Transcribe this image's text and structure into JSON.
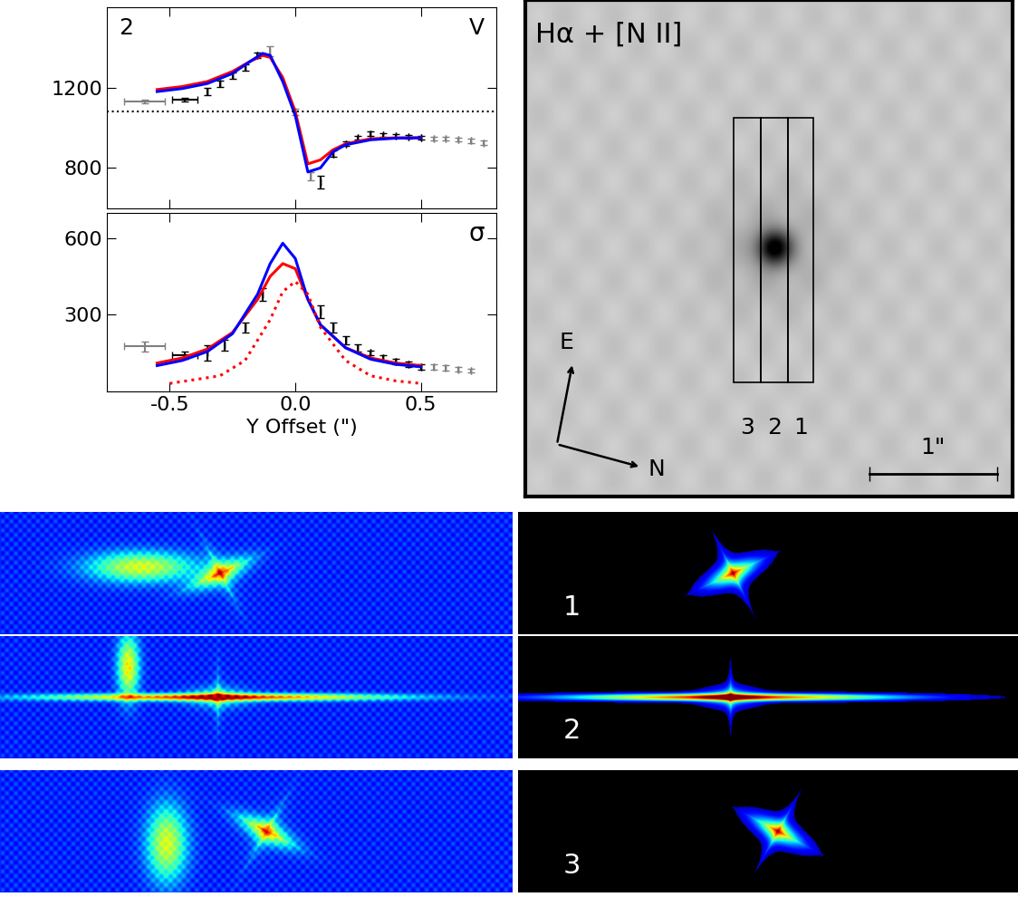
{
  "chart_data": [
    {
      "type": "line",
      "annotations": [
        "2",
        "V"
      ],
      "xlim": [
        -0.75,
        0.8
      ],
      "xticks": [
        -0.5,
        0.0,
        0.5
      ],
      "ylim": [
        600,
        1600
      ],
      "yticks": [
        800,
        1200
      ],
      "tick_labels": "y",
      "hline": 1080,
      "series": [
        {
          "type": "errorbar",
          "color": "black",
          "x": [
            -0.44,
            -0.35,
            -0.3,
            -0.25,
            -0.2,
            -0.15,
            0.1,
            0.15,
            0.2,
            0.25,
            0.3,
            0.35,
            0.4,
            0.45,
            0.5
          ],
          "values": [
            1140,
            1180,
            1220,
            1260,
            1300,
            1360,
            730,
            870,
            920,
            950,
            970,
            965,
            960,
            955,
            950
          ],
          "errors": [
            10,
            20,
            15,
            15,
            15,
            15,
            30,
            15,
            12,
            10,
            10,
            10,
            10,
            10,
            10
          ],
          "x_errors": [
            0.05,
            0,
            0,
            0,
            0,
            0,
            0,
            0,
            0,
            0,
            0,
            0,
            0,
            0,
            0
          ]
        },
        {
          "type": "errorbar",
          "color": "gray",
          "x": [
            -0.6,
            -0.1,
            0.0,
            0.06,
            0.55,
            0.6,
            0.65,
            0.7,
            0.75
          ],
          "values": [
            1130,
            1380,
            1080,
            760,
            945,
            945,
            940,
            935,
            925
          ],
          "errors": [
            10,
            25,
            15,
            20,
            10,
            10,
            10,
            10,
            10
          ],
          "x_errors": [
            0.08,
            0,
            0,
            0,
            0,
            0,
            0,
            0,
            0
          ]
        },
        {
          "type": "line",
          "color": "red",
          "line_style": "solid",
          "x": [
            -0.55,
            -0.45,
            -0.35,
            -0.25,
            -0.18,
            -0.13,
            -0.1,
            -0.05,
            0.0,
            0.05,
            0.1,
            0.15,
            0.2,
            0.3,
            0.4,
            0.5
          ],
          "values": [
            1190,
            1205,
            1230,
            1280,
            1330,
            1360,
            1350,
            1250,
            1080,
            820,
            840,
            890,
            920,
            945,
            950,
            950
          ]
        },
        {
          "type": "line",
          "color": "blue",
          "line_style": "solid",
          "x": [
            -0.55,
            -0.45,
            -0.35,
            -0.25,
            -0.18,
            -0.13,
            -0.1,
            -0.05,
            0.0,
            0.05,
            0.1,
            0.15,
            0.2,
            0.3,
            0.4,
            0.5
          ],
          "values": [
            1180,
            1195,
            1220,
            1270,
            1330,
            1370,
            1360,
            1230,
            1060,
            780,
            800,
            880,
            915,
            940,
            948,
            950
          ]
        }
      ]
    },
    {
      "type": "line",
      "annotations": [
        "σ"
      ],
      "x_label": "Y Offset (\")",
      "xlim": [
        -0.75,
        0.8
      ],
      "xticks": [
        -0.5,
        0.0,
        0.5
      ],
      "ylim": [
        0,
        700
      ],
      "yticks": [
        300,
        600
      ],
      "series": [
        {
          "type": "errorbar",
          "color": "black",
          "x": [
            -0.44,
            -0.35,
            -0.28,
            -0.2,
            -0.13,
            0.1,
            0.15,
            0.2,
            0.25,
            0.3,
            0.35,
            0.4,
            0.45,
            0.5
          ],
          "values": [
            140,
            150,
            180,
            250,
            380,
            310,
            250,
            200,
            170,
            150,
            130,
            115,
            105,
            95
          ],
          "errors": [
            15,
            30,
            20,
            20,
            25,
            25,
            20,
            15,
            15,
            10,
            10,
            10,
            10,
            10
          ],
          "x_errors": [
            0.05,
            0,
            0,
            0,
            0,
            0,
            0,
            0,
            0,
            0,
            0,
            0,
            0,
            0
          ]
        },
        {
          "type": "errorbar",
          "color": "gray",
          "x": [
            -0.6,
            0.55,
            0.6,
            0.65,
            0.7
          ],
          "values": [
            175,
            95,
            90,
            85,
            80
          ],
          "errors": [
            20,
            10,
            10,
            8,
            8
          ],
          "x_errors": [
            0.08,
            0,
            0,
            0,
            0
          ]
        },
        {
          "type": "line",
          "color": "red",
          "line_style": "solid",
          "x": [
            -0.55,
            -0.45,
            -0.35,
            -0.25,
            -0.15,
            -0.1,
            -0.05,
            0.0,
            0.05,
            0.1,
            0.2,
            0.3,
            0.4,
            0.5
          ],
          "values": [
            110,
            130,
            165,
            230,
            360,
            450,
            500,
            480,
            360,
            260,
            170,
            130,
            110,
            100
          ]
        },
        {
          "type": "line",
          "color": "blue",
          "line_style": "solid",
          "x": [
            -0.55,
            -0.45,
            -0.35,
            -0.25,
            -0.15,
            -0.1,
            -0.05,
            0.0,
            0.05,
            0.1,
            0.2,
            0.3,
            0.4,
            0.5
          ],
          "values": [
            100,
            120,
            155,
            225,
            380,
            500,
            580,
            520,
            360,
            260,
            170,
            125,
            105,
            95
          ]
        },
        {
          "type": "line",
          "color": "red",
          "line_style": "dotted",
          "x": [
            -0.5,
            -0.3,
            -0.2,
            -0.1,
            -0.05,
            0.0,
            0.05,
            0.1,
            0.2,
            0.3,
            0.4,
            0.5
          ],
          "values": [
            30,
            60,
            120,
            280,
            390,
            430,
            380,
            250,
            120,
            60,
            40,
            30
          ]
        }
      ]
    }
  ],
  "image_panel": {
    "title": "Hα + [N II]",
    "compass": [
      "E",
      "N"
    ],
    "slit_labels": [
      "3",
      "2",
      "1"
    ],
    "scale_bar": "1\""
  },
  "spectra_panels": {
    "labels": [
      "1",
      "2",
      "3"
    ]
  }
}
